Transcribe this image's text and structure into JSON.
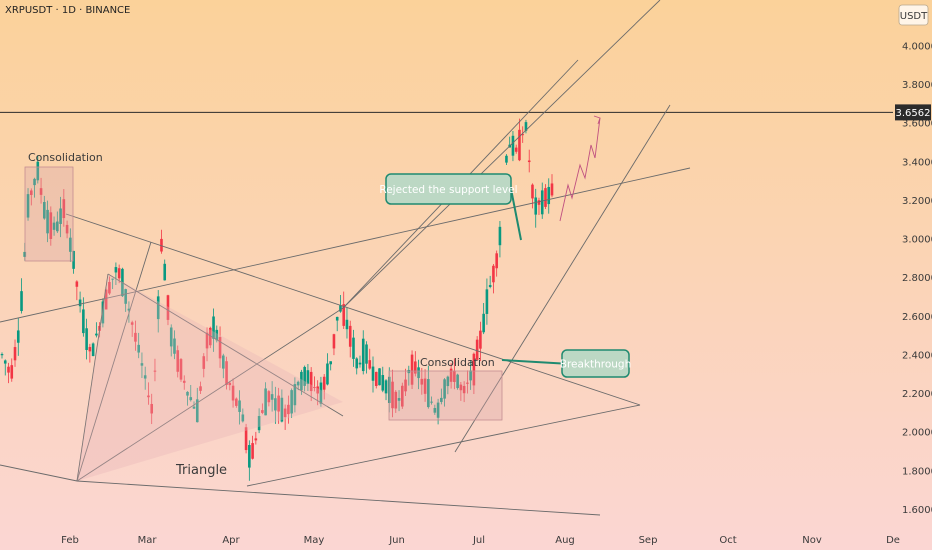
{
  "header": {
    "symbol_line": "XRPUSDT · 1D · BINANCE"
  },
  "price_axis": {
    "currency": "USDT",
    "ticks": [
      "4.0000",
      "3.8000",
      "3.6562",
      "3.6000",
      "3.4000",
      "3.2000",
      "3.0000",
      "2.8000",
      "2.6000",
      "2.4000",
      "2.2000",
      "2.0000",
      "1.8000",
      "1.6000"
    ],
    "tick_values": [
      4.0,
      3.8,
      3.6562,
      3.6,
      3.4,
      3.2,
      3.0,
      2.8,
      2.6,
      2.4,
      2.2,
      2.0,
      1.8,
      1.6
    ],
    "current_price": "3.6562"
  },
  "time_axis": {
    "labels": [
      "Feb",
      "Mar",
      "Apr",
      "May",
      "Jun",
      "Jul",
      "Aug",
      "Sep",
      "Oct",
      "Nov",
      "De"
    ]
  },
  "annotations": {
    "consolidation_1": "Consolidation",
    "consolidation_2": "Consolidation",
    "triangle": "Triangle",
    "rejected": "Rejected the support level",
    "breakthrough": "Breakthrough"
  },
  "colors": {
    "bull": "#089981",
    "bear": "#f23645",
    "callout_fill": "#bcd8c4",
    "callout_border": "#1f8a70",
    "bg_top": "#fbd29a",
    "bg_bottom": "#fbd6d3"
  },
  "chart_data": {
    "type": "candlestick",
    "title": "XRPUSDT · 1D · BINANCE",
    "y_unit": "USDT",
    "ylim": [
      1.55,
      4.1
    ],
    "x_ticks": [
      "Feb",
      "Mar",
      "Apr",
      "May",
      "Jun",
      "Jul",
      "Aug",
      "Sep",
      "Oct",
      "Nov",
      "De"
    ],
    "close_path_approx": [
      2.4,
      2.3,
      2.55,
      3.2,
      3.35,
      3.1,
      3.05,
      3.15,
      2.9,
      2.6,
      2.4,
      2.55,
      2.75,
      2.85,
      2.7,
      2.5,
      2.3,
      2.1,
      3.0,
      2.5,
      2.35,
      2.2,
      2.1,
      2.45,
      2.55,
      2.35,
      2.2,
      2.1,
      1.85,
      2.05,
      2.2,
      2.15,
      2.1,
      2.2,
      2.3,
      2.25,
      2.2,
      2.35,
      2.65,
      2.55,
      2.35,
      2.4,
      2.3,
      2.25,
      2.2,
      2.15,
      2.35,
      2.3,
      2.2,
      2.1,
      2.25,
      2.3,
      2.2,
      2.3,
      2.5,
      2.75,
      2.95,
      3.5,
      3.45,
      3.6,
      3.15,
      3.2,
      3.25
    ],
    "horizontal_line": 3.6562
  }
}
